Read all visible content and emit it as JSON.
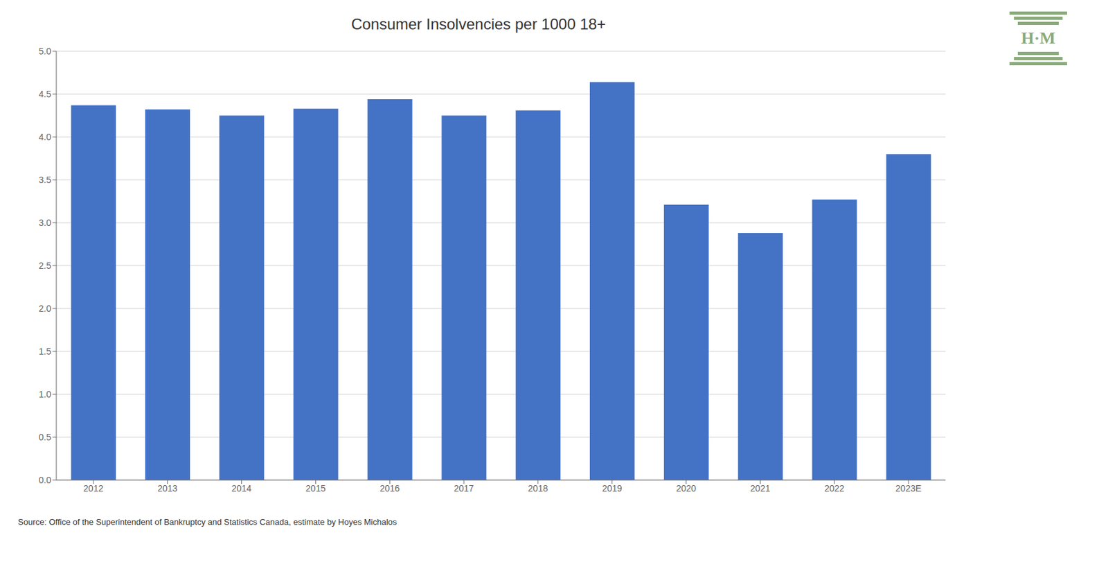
{
  "chart_data": {
    "type": "bar",
    "title": "Consumer Insolvencies per 1000 18+",
    "categories": [
      "2012",
      "2013",
      "2014",
      "2015",
      "2016",
      "2017",
      "2018",
      "2019",
      "2020",
      "2021",
      "2022",
      "2023E"
    ],
    "values": [
      4.37,
      4.32,
      4.25,
      4.33,
      4.44,
      4.25,
      4.31,
      4.64,
      3.21,
      2.88,
      3.27,
      3.8
    ],
    "color": "#4472C4",
    "ylim": [
      0,
      5.0
    ],
    "yticks": [
      {
        "value": 0,
        "label": "0.0"
      },
      0.5,
      {
        "value": 1,
        "label": "1.0"
      },
      1.5,
      {
        "value": 2,
        "label": "2.0"
      },
      2.5,
      {
        "value": 3,
        "label": "3.0"
      },
      3.5,
      {
        "value": 4,
        "label": "4.0"
      },
      4.5,
      {
        "value": 5,
        "label": "5.0"
      }
    ],
    "grid": true,
    "source": "Source: Office of the Superintendent of Bankruptcy and Statistics Canada, estimate by Hoyes Michalos",
    "annotations": [
      {
        "text": "H·M",
        "color": "#8aaa7a"
      }
    ]
  }
}
